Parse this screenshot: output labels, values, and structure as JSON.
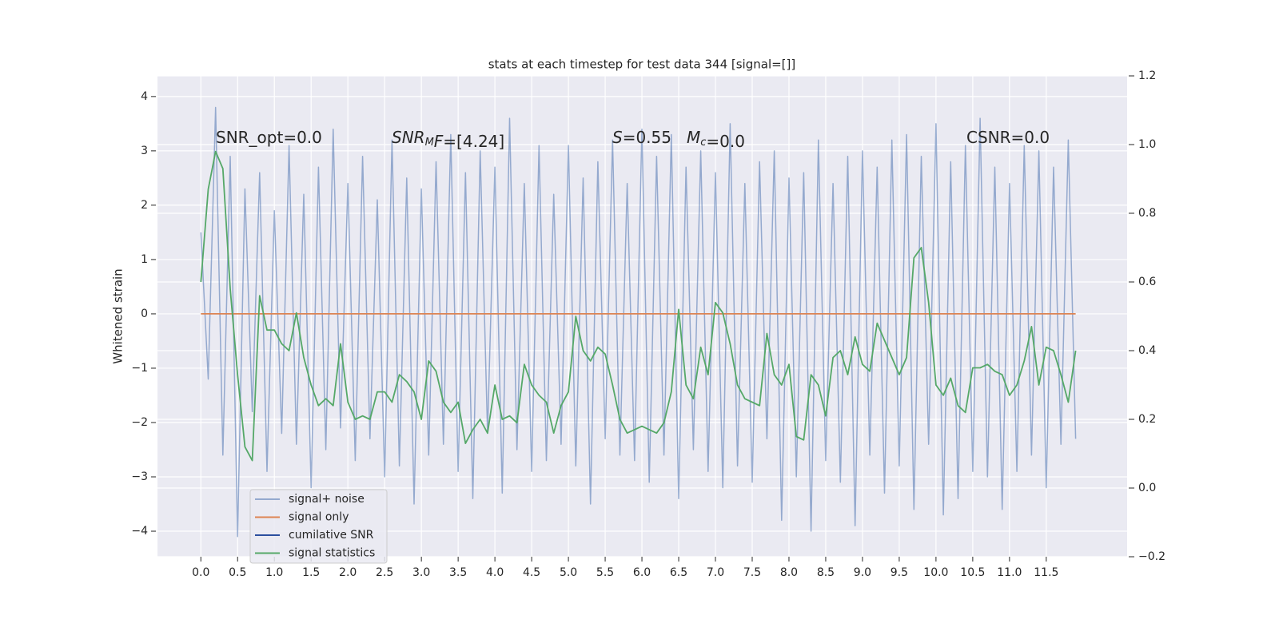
{
  "chart_data": {
    "type": "line",
    "title": "stats at each timestep for test data 344 [signal=[]]",
    "ylabel": "Whitened strain",
    "x": [
      0,
      0.1,
      0.2,
      0.3,
      0.4,
      0.5,
      0.6,
      0.7,
      0.8,
      0.9,
      1,
      1.1,
      1.2,
      1.3,
      1.4,
      1.5,
      1.6,
      1.7,
      1.8,
      1.9,
      2,
      2.1,
      2.2,
      2.3,
      2.4,
      2.5,
      2.6,
      2.7,
      2.8,
      2.9,
      3,
      3.1,
      3.2,
      3.3,
      3.4,
      3.5,
      3.6,
      3.7,
      3.8,
      3.9,
      4,
      4.1,
      4.2,
      4.3,
      4.4,
      4.5,
      4.6,
      4.7,
      4.8,
      4.9,
      5,
      5.1,
      5.2,
      5.3,
      5.4,
      5.5,
      5.6,
      5.7,
      5.8,
      5.9,
      6,
      6.1,
      6.2,
      6.3,
      6.4,
      6.5,
      6.6,
      6.7,
      6.8,
      6.9,
      7,
      7.1,
      7.2,
      7.3,
      7.4,
      7.5,
      7.6,
      7.7,
      7.8,
      7.9,
      8,
      8.1,
      8.2,
      8.3,
      8.4,
      8.5,
      8.6,
      8.7,
      8.8,
      8.9,
      9,
      9.1,
      9.2,
      9.3,
      9.4,
      9.5,
      9.6,
      9.7,
      9.8,
      9.9,
      10,
      10.1,
      10.2,
      10.3,
      10.4,
      10.5,
      10.6,
      10.7,
      10.8,
      10.9,
      11,
      11.1,
      11.2,
      11.3,
      11.4,
      11.5,
      11.6,
      11.7,
      11.8,
      11.9
    ],
    "series": [
      {
        "name": "signal+ noise",
        "color": "#4c72b0",
        "values": [
          1.5,
          -1.2,
          3.8,
          -2.6,
          2.9,
          -4.1,
          2.3,
          -1.8,
          2.6,
          -2.9,
          1.9,
          -2.2,
          3.1,
          -2.4,
          2.2,
          -3.2,
          2.7,
          -2.5,
          3.4,
          -2.1,
          2.4,
          -2.7,
          2.9,
          -2.3,
          2.1,
          -3.0,
          3.2,
          -2.8,
          2.5,
          -3.5,
          2.3,
          -2.6,
          2.8,
          -2.4,
          3.3,
          -2.9,
          2.6,
          -3.4,
          3.0,
          -2.2,
          2.7,
          -3.3,
          3.6,
          -2.5,
          2.4,
          -2.9,
          3.1,
          -2.7,
          2.2,
          -2.4,
          3.1,
          -2.8,
          2.5,
          -3.5,
          2.8,
          -2.3,
          3.2,
          -2.6,
          2.4,
          -2.7,
          3.4,
          -3.1,
          2.9,
          -2.6,
          3.3,
          -3.4,
          2.7,
          -2.5,
          3.0,
          -2.9,
          2.6,
          -3.2,
          3.5,
          -2.8,
          2.4,
          -3.1,
          2.8,
          -2.3,
          3.0,
          -3.8,
          2.5,
          -3.0,
          2.6,
          -4.0,
          3.2,
          -2.7,
          2.4,
          -3.1,
          2.9,
          -3.9,
          3.0,
          -2.6,
          2.7,
          -3.3,
          3.2,
          -2.8,
          3.3,
          -3.6,
          2.9,
          -2.4,
          3.5,
          -3.7,
          2.8,
          -3.4,
          3.1,
          -2.9,
          3.6,
          -3.0,
          2.7,
          -3.6,
          2.4,
          -2.9,
          3.1,
          -2.6,
          3.0,
          -3.2,
          2.7,
          -2.4,
          3.2,
          -2.3
        ]
      },
      {
        "name": "signal only",
        "color": "#dd8452",
        "values": [
          0,
          0,
          0,
          0,
          0,
          0,
          0,
          0,
          0,
          0,
          0,
          0,
          0,
          0,
          0,
          0,
          0,
          0,
          0,
          0,
          0,
          0,
          0,
          0,
          0,
          0,
          0,
          0,
          0,
          0,
          0,
          0,
          0,
          0,
          0,
          0,
          0,
          0,
          0,
          0,
          0,
          0,
          0,
          0,
          0,
          0,
          0,
          0,
          0,
          0,
          0,
          0,
          0,
          0,
          0,
          0,
          0,
          0,
          0,
          0,
          0,
          0,
          0,
          0,
          0,
          0,
          0,
          0,
          0,
          0,
          0,
          0,
          0,
          0,
          0,
          0,
          0,
          0,
          0,
          0,
          0,
          0,
          0,
          0,
          0,
          0,
          0,
          0,
          0,
          0,
          0,
          0,
          0,
          0,
          0,
          0,
          0,
          0,
          0,
          0,
          0,
          0,
          0,
          0,
          0,
          0,
          0,
          0,
          0,
          0,
          0,
          0,
          0,
          0,
          0,
          0,
          0,
          0,
          0,
          0
        ]
      },
      {
        "name": "cumilative SNR",
        "color": "#2b4f9e",
        "values": [
          null,
          null,
          null,
          null,
          null,
          null,
          null,
          null,
          null,
          null,
          null,
          null,
          null,
          null,
          null,
          null,
          null,
          null,
          null,
          null,
          null,
          null,
          null,
          null,
          null,
          null,
          null,
          null,
          null,
          null,
          null,
          null,
          null,
          null,
          null,
          null,
          null,
          null,
          null,
          null,
          null,
          null,
          null,
          null,
          null,
          null,
          null,
          null,
          null,
          null,
          null,
          null,
          null,
          null,
          null,
          null,
          null,
          null,
          null,
          null,
          null,
          null,
          null,
          null,
          null,
          null,
          null,
          null,
          null,
          null,
          null,
          null,
          null,
          null,
          null,
          null,
          null,
          null,
          null,
          null,
          null,
          null,
          null,
          null,
          null,
          null,
          null,
          null,
          null,
          null,
          null,
          null,
          null,
          null,
          null,
          null,
          null,
          null,
          null,
          null,
          null,
          null,
          null,
          null,
          null,
          null,
          null,
          null,
          null,
          null,
          null,
          null,
          null,
          null,
          null,
          null,
          null,
          null,
          null,
          null
        ]
      },
      {
        "name": "signal statistics",
        "color": "#55a868",
        "axis": "y2",
        "values": [
          0.6,
          0.87,
          0.98,
          0.93,
          0.58,
          0.33,
          0.12,
          0.08,
          0.56,
          0.46,
          0.46,
          0.42,
          0.4,
          0.51,
          0.38,
          0.3,
          0.24,
          0.26,
          0.24,
          0.42,
          0.25,
          0.2,
          0.21,
          0.2,
          0.28,
          0.28,
          0.25,
          0.33,
          0.31,
          0.28,
          0.2,
          0.37,
          0.34,
          0.25,
          0.22,
          0.25,
          0.13,
          0.17,
          0.2,
          0.16,
          0.3,
          0.2,
          0.21,
          0.19,
          0.36,
          0.3,
          0.27,
          0.25,
          0.16,
          0.24,
          0.28,
          0.5,
          0.4,
          0.37,
          0.41,
          0.39,
          0.3,
          0.2,
          0.16,
          0.17,
          0.18,
          0.17,
          0.16,
          0.19,
          0.28,
          0.52,
          0.3,
          0.26,
          0.41,
          0.33,
          0.54,
          0.51,
          0.42,
          0.3,
          0.26,
          0.25,
          0.24,
          0.45,
          0.33,
          0.3,
          0.36,
          0.15,
          0.14,
          0.33,
          0.3,
          0.21,
          0.38,
          0.4,
          0.33,
          0.44,
          0.36,
          0.34,
          0.48,
          0.43,
          0.38,
          0.33,
          0.38,
          0.67,
          0.7,
          0.54,
          0.3,
          0.27,
          0.32,
          0.24,
          0.22,
          0.35,
          0.35,
          0.36,
          0.34,
          0.33,
          0.27,
          0.3,
          0.37,
          0.47,
          0.3,
          0.41,
          0.4,
          0.33,
          0.25,
          0.4
        ]
      }
    ],
    "xlim": [
      -0.59,
      12.6
    ],
    "ylim": [
      -4.47,
      4.38
    ],
    "y2lim": [
      -0.2,
      1.2
    ],
    "xticks": [
      {
        "value": 0,
        "label": "0.0"
      },
      0.5,
      {
        "value": 1,
        "label": "1.0"
      },
      1.5,
      {
        "value": 2,
        "label": "2.0"
      },
      2.5,
      {
        "value": 3,
        "label": "3.0"
      },
      3.5,
      {
        "value": 4,
        "label": "4.0"
      },
      4.5,
      {
        "value": 5,
        "label": "5.0"
      },
      5.5,
      {
        "value": 6,
        "label": "6.0"
      },
      6.5,
      {
        "value": 7,
        "label": "7.0"
      },
      7.5,
      {
        "value": 8,
        "label": "8.0"
      },
      8.5,
      {
        "value": 9,
        "label": "9.0"
      },
      9.5,
      {
        "value": 10,
        "label": "10.0"
      },
      10.5,
      {
        "value": 11,
        "label": "11.0"
      },
      11.5
    ],
    "yticks": [
      {
        "value": -4,
        "label": "−4"
      },
      {
        "value": -3,
        "label": "−3"
      },
      {
        "value": -2,
        "label": "−2"
      },
      {
        "value": -1,
        "label": "−1"
      },
      0,
      1,
      2,
      3,
      4
    ],
    "y2ticks": [
      {
        "value": -0.2,
        "label": "−0.2"
      },
      {
        "value": 0,
        "label": "0.0"
      },
      0.2,
      0.4,
      0.6,
      0.8,
      {
        "value": 1,
        "label": "1.0"
      },
      1.2
    ],
    "grid": true,
    "legend": "lower left",
    "annotations": [
      [
        "SNR_opt=0.0"
      ],
      [
        {
          "i": "SNR"
        },
        {
          "sub": "M"
        },
        {
          "i": "F"
        },
        "=[4.24]"
      ],
      [
        {
          "i": "S"
        },
        "=0.55"
      ],
      [
        {
          "i": "M"
        },
        {
          "sub": "c"
        },
        "=0.0"
      ],
      [
        "CSNR=0.0"
      ]
    ]
  }
}
